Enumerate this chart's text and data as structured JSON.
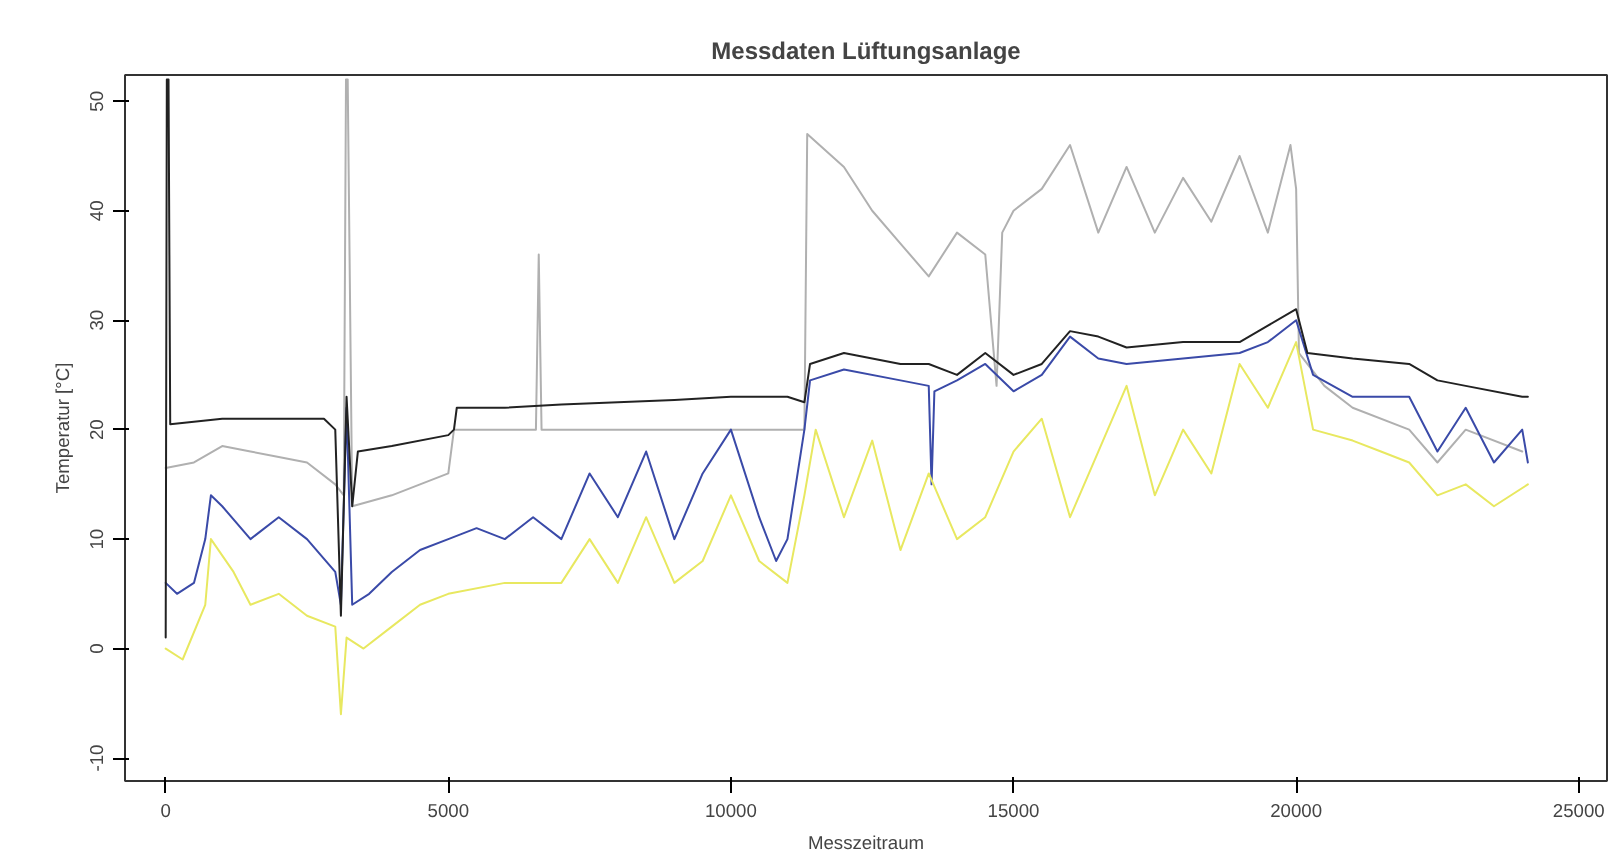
{
  "chart_data": {
    "type": "line",
    "title": "Messdaten Lüftungsanlage",
    "xlabel": "Messzeitraum",
    "ylabel": "Temperatur [°C]",
    "xlim": [
      -720,
      25500
    ],
    "ylim": [
      -12.1,
      52.4
    ],
    "xticks": [
      0,
      5000,
      10000,
      15000,
      20000,
      25000
    ],
    "yticks": [
      -10,
      0,
      10,
      20,
      30,
      40,
      50
    ],
    "grid": false,
    "series": [
      {
        "color": "#b0b0b0",
        "x": [
          0,
          500,
          1000,
          1500,
          2000,
          2500,
          3000,
          3150,
          3190,
          3220,
          3300,
          4000,
          5000,
          5100,
          6000,
          6550,
          6600,
          6650,
          8000,
          10000,
          11000,
          11300,
          11350,
          12000,
          12500,
          13000,
          13500,
          14000,
          14500,
          14700,
          14800,
          15000,
          15500,
          16000,
          16500,
          17000,
          17500,
          18000,
          18500,
          19000,
          19500,
          19900,
          20000,
          20050,
          20500,
          21000,
          22000,
          22500,
          23000,
          24000
        ],
        "values": [
          16.5,
          17,
          18.5,
          18,
          17.5,
          17,
          15,
          14,
          52,
          52,
          13,
          14,
          16,
          20,
          20,
          20,
          36,
          20,
          20,
          20,
          20,
          20,
          47,
          44,
          40,
          37,
          34,
          38,
          36,
          24,
          38,
          40,
          42,
          46,
          38,
          44,
          38,
          43,
          39,
          45,
          38,
          46,
          42,
          27,
          24,
          22,
          20,
          17,
          20,
          18
        ]
      },
      {
        "color": "#3a4aa8",
        "x": [
          0,
          200,
          500,
          700,
          800,
          1000,
          1500,
          2000,
          2500,
          3000,
          3100,
          3200,
          3300,
          3600,
          4000,
          4500,
          5000,
          5500,
          6000,
          6500,
          7000,
          7500,
          8000,
          8500,
          9000,
          9500,
          10000,
          10500,
          10800,
          11000,
          11300,
          11400,
          12000,
          13000,
          13500,
          13550,
          13600,
          14000,
          14500,
          15000,
          15500,
          16000,
          16500,
          17000,
          18000,
          19000,
          19500,
          20000,
          20300,
          21000,
          22000,
          22500,
          23000,
          23500,
          24000,
          24100
        ],
        "values": [
          6,
          5,
          6,
          10,
          14,
          13,
          10,
          12,
          10,
          7,
          4,
          22,
          4,
          5,
          7,
          9,
          10,
          11,
          10,
          12,
          10,
          16,
          12,
          18,
          10,
          16,
          20,
          12,
          8,
          10,
          20,
          24.5,
          25.5,
          24.5,
          24,
          15,
          23.5,
          24.5,
          26,
          23.5,
          25,
          28.5,
          26.5,
          26,
          26.5,
          27,
          28,
          30,
          25,
          23,
          23,
          18,
          22,
          17,
          20,
          17
        ]
      },
      {
        "color": "#e8e860",
        "x": [
          0,
          300,
          700,
          800,
          1200,
          1500,
          2000,
          2500,
          3000,
          3100,
          3200,
          3500,
          4000,
          4500,
          5000,
          6000,
          7000,
          7500,
          8000,
          8500,
          9000,
          9500,
          10000,
          10500,
          11000,
          11300,
          11500,
          12000,
          12500,
          13000,
          13500,
          14000,
          14500,
          15000,
          15500,
          16000,
          16500,
          17000,
          17500,
          18000,
          18500,
          19000,
          19500,
          20000,
          20300,
          21000,
          21500,
          22000,
          22500,
          23000,
          23500,
          24100
        ],
        "values": [
          0,
          -1,
          4,
          10,
          7,
          4,
          5,
          3,
          2,
          -6,
          1,
          0,
          2,
          4,
          5,
          6,
          6,
          10,
          6,
          12,
          6,
          8,
          14,
          8,
          6,
          14,
          20,
          12,
          19,
          9,
          16,
          10,
          12,
          18,
          21,
          12,
          18,
          24,
          14,
          20,
          16,
          26,
          22,
          28,
          20,
          19,
          18,
          17,
          14,
          15,
          13,
          15
        ]
      },
      {
        "color": "#222222",
        "x": [
          0,
          20,
          50,
          80,
          1000,
          2000,
          2800,
          3000,
          3100,
          3200,
          3300,
          3400,
          4000,
          5000,
          5100,
          5150,
          6000,
          7000,
          8000,
          9000,
          10000,
          11000,
          11300,
          11400,
          12000,
          13000,
          13500,
          14000,
          14500,
          15000,
          15500,
          16000,
          16500,
          17000,
          18000,
          19000,
          19500,
          20000,
          20200,
          21000,
          22000,
          22500,
          23000,
          24000,
          24100
        ],
        "values": [
          1,
          52,
          52,
          20.5,
          21,
          21,
          21,
          20,
          3,
          23,
          13,
          18,
          18.5,
          19.5,
          20,
          22,
          22,
          22.3,
          22.5,
          22.7,
          23,
          23,
          22.5,
          26,
          27,
          26,
          26,
          25,
          27,
          25,
          26,
          29,
          28.5,
          27.5,
          28,
          28,
          29.5,
          31,
          27,
          26.5,
          26,
          24.5,
          24,
          23,
          23
        ]
      }
    ]
  }
}
